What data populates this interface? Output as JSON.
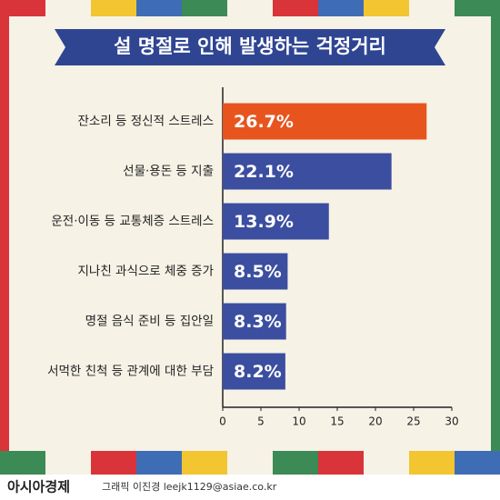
{
  "chart_data": {
    "type": "bar",
    "orientation": "horizontal",
    "title": "설 명절로 인해 발생하는 걱정거리",
    "categories": [
      "잔소리 등 정신적 스트레스",
      "선물·용돈 등 지출",
      "운전·이동 등 교통체증 스트레스",
      "지나친 과식으로 체중 증가",
      "명절 음식 준비 등 집안일",
      "서먹한 친척 등 관계에 대한 부담"
    ],
    "values": [
      26.7,
      22.1,
      13.9,
      8.5,
      8.3,
      8.2
    ],
    "value_labels": [
      "26.7%",
      "22.1%",
      "13.9%",
      "8.5%",
      "8.3%",
      "8.2%"
    ],
    "colors": [
      "#e8541e",
      "#3b4ea0",
      "#3b4ea0",
      "#3b4ea0",
      "#3b4ea0",
      "#3b4ea0"
    ],
    "xlim": [
      0,
      30
    ],
    "xticks": [
      0,
      5,
      10,
      15,
      20,
      25,
      30
    ],
    "grid": false
  },
  "footer": {
    "logo": "아시아경제",
    "credit": "그래픽 이진경 leejk1129@asiae.co.kr"
  }
}
